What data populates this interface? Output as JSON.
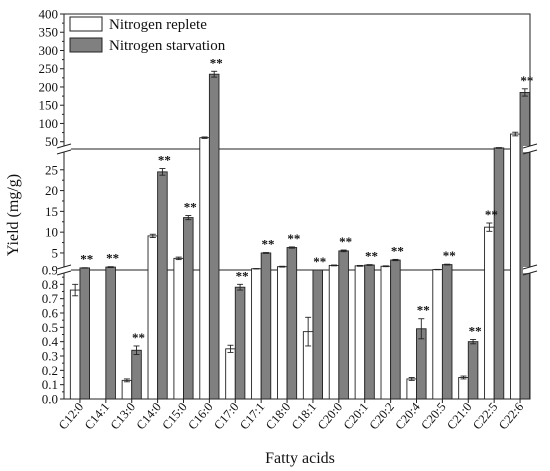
{
  "chart_data": {
    "type": "bar",
    "xlabel": "Fatty acids",
    "ylabel": "Yield (mg/g)",
    "axis_breaks": "broken y axis with three segments",
    "y_segments": [
      {
        "range": [
          0,
          0.9
        ],
        "ticks": [
          "0.0",
          "0.1",
          "0.2",
          "0.3",
          "0.4",
          "0.5",
          "0.6",
          "0.7",
          "0.8",
          "0.9"
        ]
      },
      {
        "range": [
          0.9,
          30
        ],
        "ticks": [
          "5",
          "10",
          "15",
          "20",
          "25"
        ]
      },
      {
        "range": [
          30,
          400
        ],
        "ticks": [
          "50",
          "100",
          "150",
          "200",
          "250",
          "300",
          "350",
          "400"
        ]
      }
    ],
    "categories": [
      "C12:0",
      "C14:1",
      "C13:0",
      "C14:0",
      "C15:0",
      "C16:0",
      "C17:0",
      "C17:1",
      "C18:0",
      "C18:1",
      "C20:0",
      "C20:1",
      "C20:2",
      "C20:4",
      "C20:5",
      "C21:0",
      "C22:5",
      "C22:6"
    ],
    "series": [
      {
        "name": "Nitrogen replete",
        "color": "#ffffff",
        "values": [
          0.76,
          0.0,
          0.13,
          9.1,
          3.7,
          61,
          0.35,
          1.2,
          1.7,
          0.47,
          2.0,
          1.9,
          1.8,
          0.14,
          1.0,
          0.15,
          11.2,
          71
        ],
        "errors": [
          0.04,
          0.0,
          0.01,
          0.4,
          0.3,
          2,
          0.025,
          0.05,
          0.1,
          0.1,
          0.1,
          0.1,
          0.1,
          0.01,
          0.05,
          0.01,
          1.0,
          5
        ]
      },
      {
        "name": "Nitrogen starvation",
        "color": "#808080",
        "values": [
          1.4,
          1.6,
          0.34,
          24.5,
          13.5,
          235,
          0.78,
          5.0,
          6.3,
          0.9,
          5.5,
          2.1,
          3.3,
          0.49,
          2.2,
          0.4,
          32.9,
          185
        ],
        "errors": [
          0.05,
          0.1,
          0.03,
          0.8,
          0.5,
          8,
          0.02,
          0.1,
          0.15,
          0.0,
          0.2,
          0.1,
          0.15,
          0.07,
          0.1,
          0.015,
          1.0,
          10
        ]
      }
    ],
    "significance_label": "**",
    "significance_marks": [
      {
        "category": "C12:0",
        "series": "Nitrogen starvation"
      },
      {
        "category": "C14:1",
        "series": "Nitrogen starvation"
      },
      {
        "category": "C13:0",
        "series": "Nitrogen starvation"
      },
      {
        "category": "C14:0",
        "series": "Nitrogen starvation"
      },
      {
        "category": "C15:0",
        "series": "Nitrogen starvation"
      },
      {
        "category": "C16:0",
        "series": "Nitrogen starvation"
      },
      {
        "category": "C17:0",
        "series": "Nitrogen starvation"
      },
      {
        "category": "C17:1",
        "series": "Nitrogen starvation"
      },
      {
        "category": "C18:0",
        "series": "Nitrogen starvation"
      },
      {
        "category": "C18:1",
        "series": "Nitrogen starvation"
      },
      {
        "category": "C20:0",
        "series": "Nitrogen starvation"
      },
      {
        "category": "C20:1",
        "series": "Nitrogen starvation"
      },
      {
        "category": "C20:2",
        "series": "Nitrogen starvation"
      },
      {
        "category": "C20:4",
        "series": "Nitrogen starvation"
      },
      {
        "category": "C20:5",
        "series": "Nitrogen starvation"
      },
      {
        "category": "C21:0",
        "series": "Nitrogen starvation"
      },
      {
        "category": "C22:5",
        "series": "Nitrogen replete"
      },
      {
        "category": "C22:6",
        "series": "Nitrogen starvation"
      }
    ],
    "legend": {
      "position": "top-left",
      "entries": [
        "Nitrogen replete",
        "Nitrogen starvation"
      ]
    }
  }
}
